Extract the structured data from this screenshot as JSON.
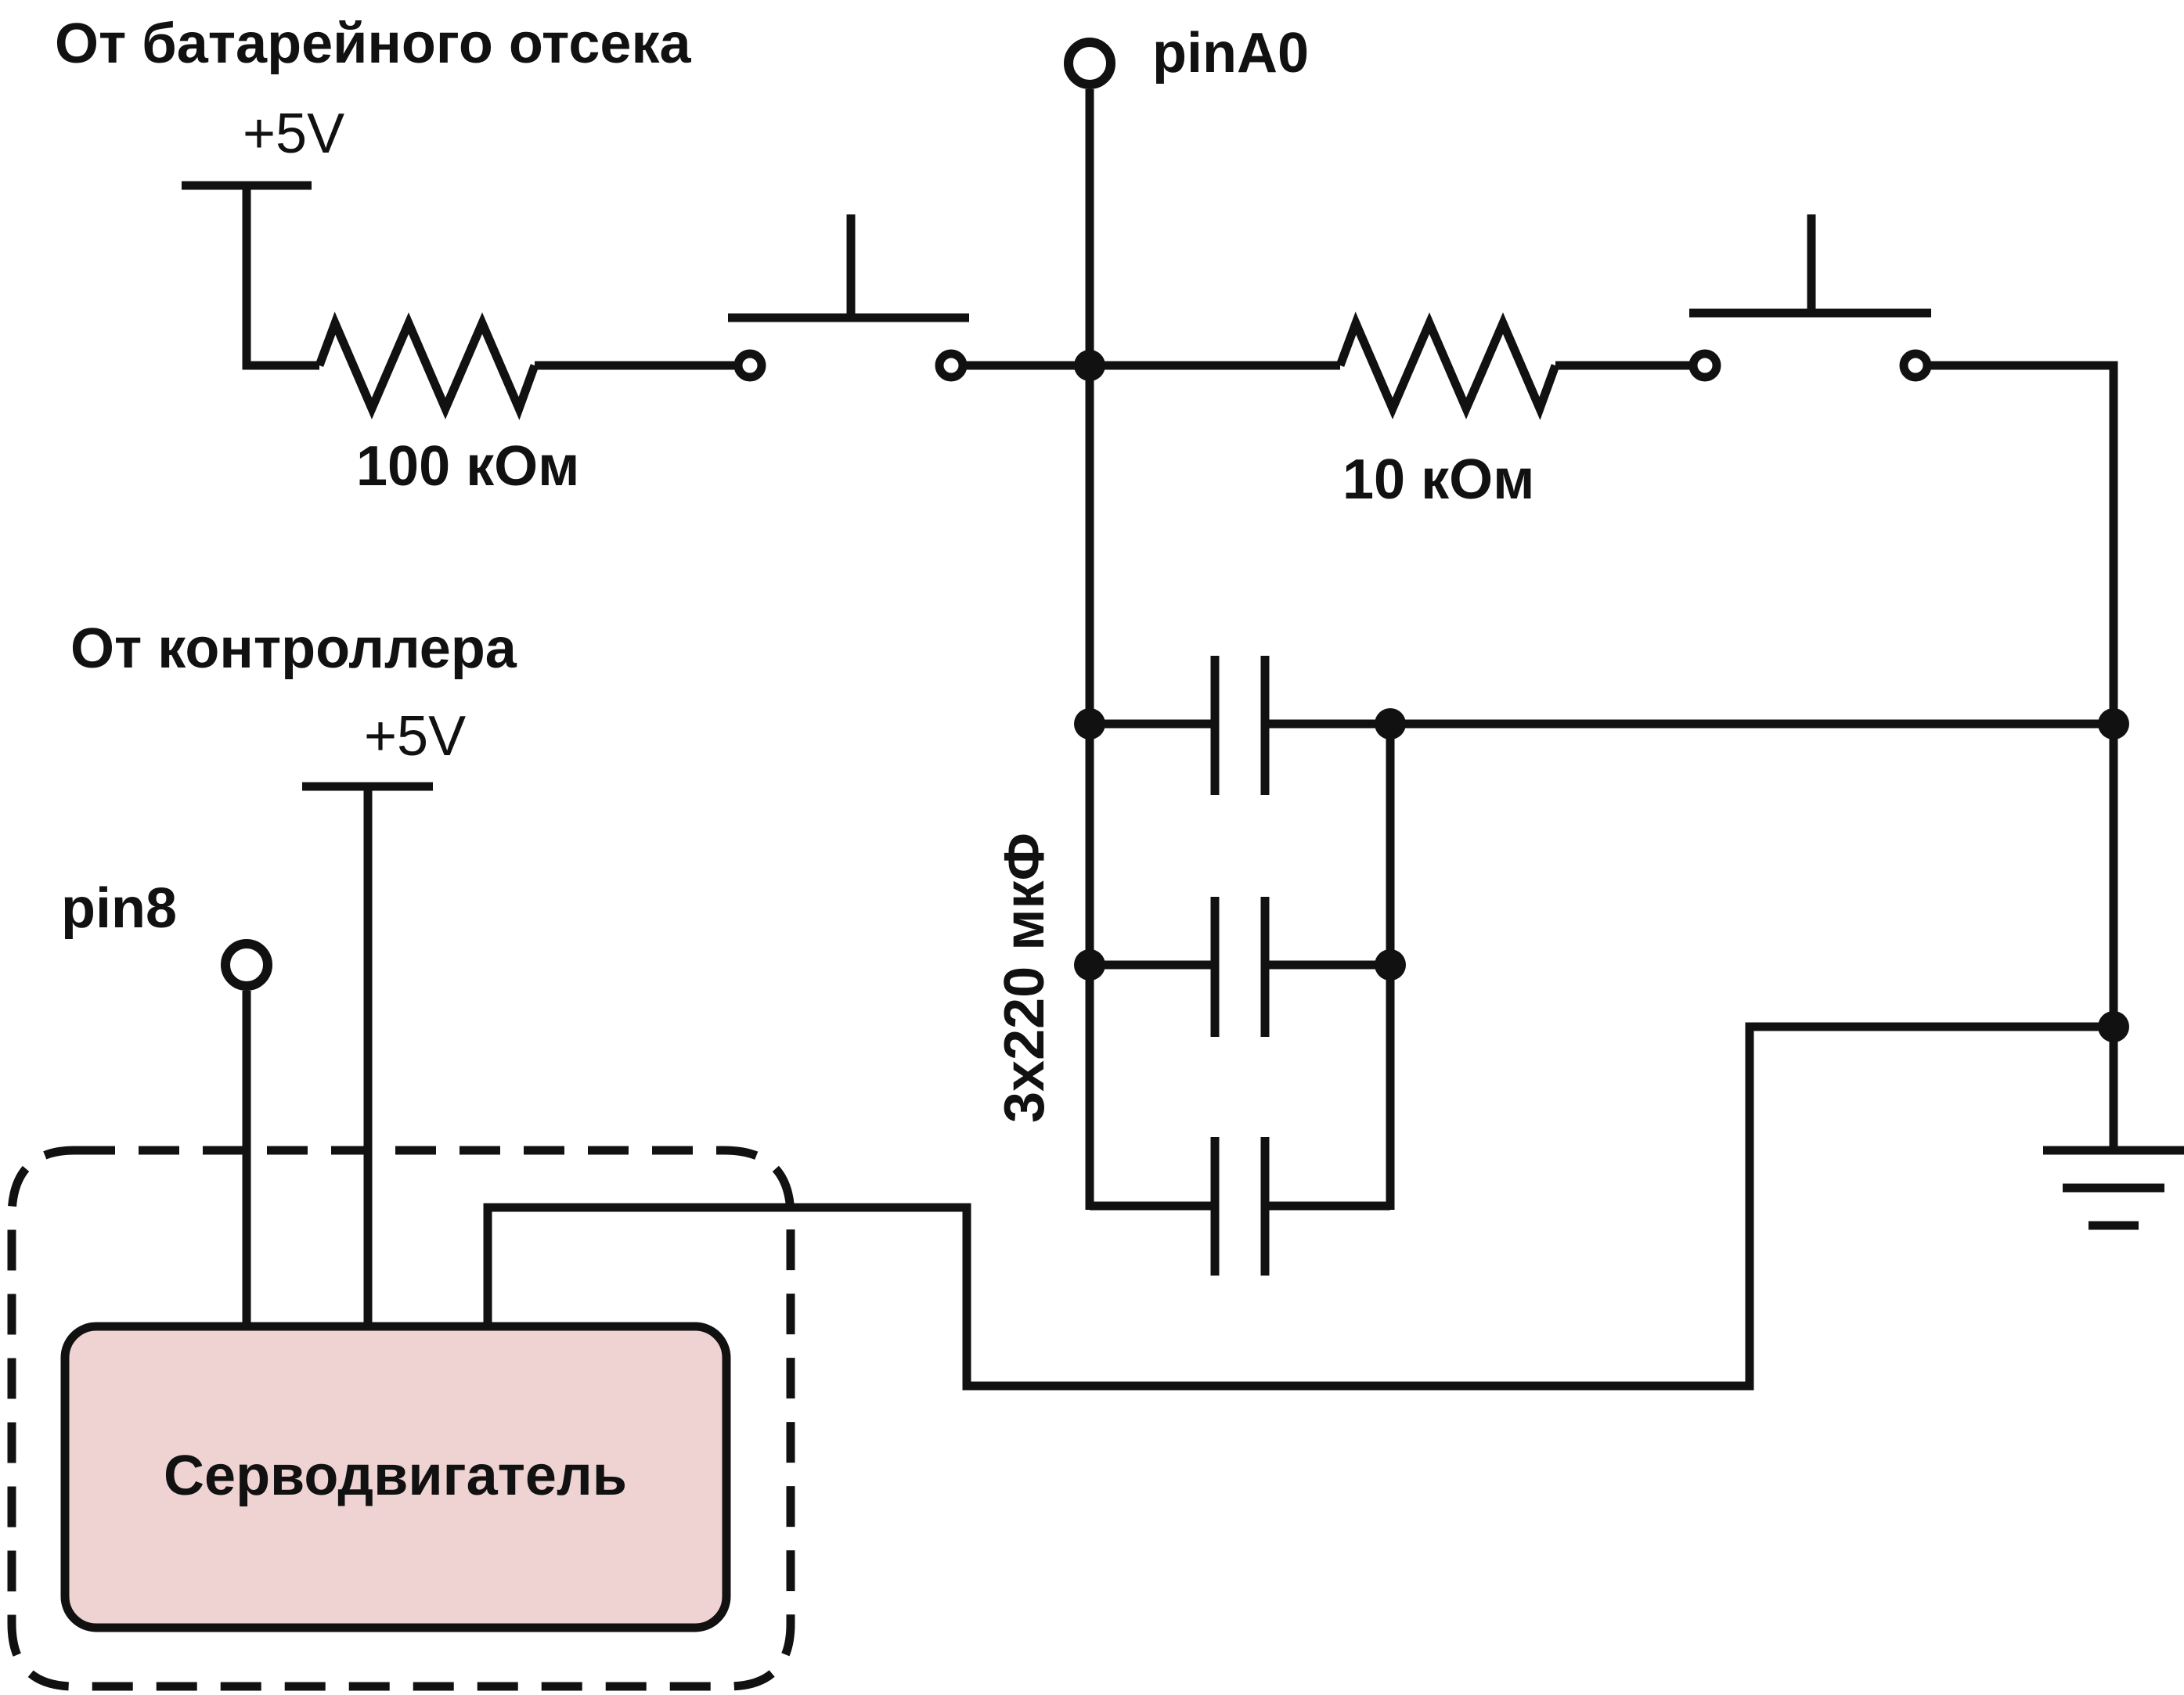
{
  "labels": {
    "battery_source": "От батарейного отсека",
    "battery_voltage": "+5V",
    "controller_source": "От контроллера",
    "controller_voltage": "+5V",
    "pin_a0": "pinA0",
    "pin_8": "pin8",
    "resistor_1": "100 кОм",
    "resistor_2": "10 кОм",
    "capacitors": "3x220 мкФ",
    "servo": "Серводвигатель"
  },
  "colors": {
    "servo_fill": "#efd3d3",
    "line": "#111111",
    "background": "#ffffff"
  }
}
